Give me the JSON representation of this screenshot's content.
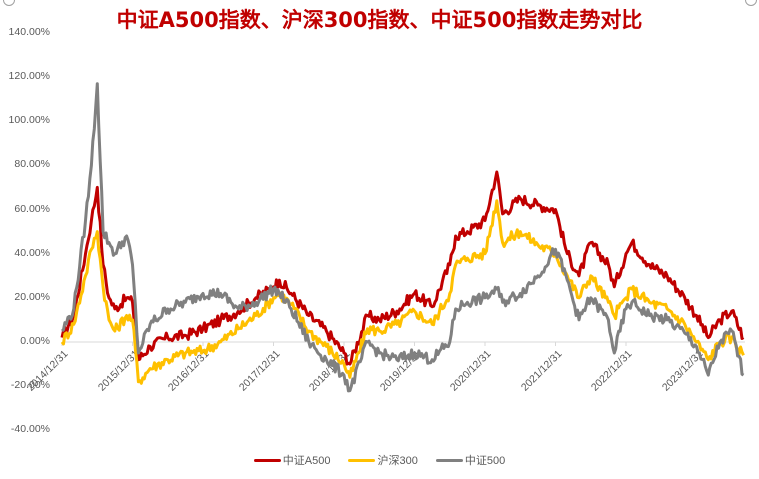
{
  "title": "中证A500指数、沪深300指数、中证500指数走势对比",
  "legend": [
    {
      "label": "中证A500",
      "color": "#c00000"
    },
    {
      "label": "沪深300",
      "color": "#ffc000"
    },
    {
      "label": "中证500",
      "color": "#808080"
    }
  ],
  "y_axis": {
    "ticks": [
      "140.00%",
      "120.00%",
      "100.00%",
      "80.00%",
      "60.00%",
      "40.00%",
      "20.00%",
      "0.00%",
      "-20.00%",
      "-40.00%"
    ]
  },
  "x_axis": {
    "ticks": [
      "2014/12/31",
      "2015/12/31",
      "2016/12/31",
      "2017/12/31",
      "2018/12/31",
      "2019/12/31",
      "2020/12/31",
      "2021/12/31",
      "2022/12/31",
      "2023/12/31"
    ]
  },
  "chart_data": {
    "type": "line",
    "title": "中证A500指数、沪深300指数、中证500指数走势对比",
    "xlabel": "",
    "ylabel": "",
    "ylim": [
      -40,
      140
    ],
    "y_unit": "%",
    "grid": false,
    "legend_position": "bottom",
    "x": [
      "2014-12",
      "2015-02",
      "2015-04",
      "2015-05",
      "2015-06",
      "2015-07",
      "2015-08",
      "2015-09",
      "2015-11",
      "2015-12",
      "2016-01",
      "2016-03",
      "2016-06",
      "2016-09",
      "2016-12",
      "2017-03",
      "2017-06",
      "2017-09",
      "2017-12",
      "2018-01",
      "2018-03",
      "2018-06",
      "2018-09",
      "2018-12",
      "2019-01",
      "2019-04",
      "2019-06",
      "2019-09",
      "2019-12",
      "2020-03",
      "2020-06",
      "2020-07",
      "2020-09",
      "2020-12",
      "2021-02",
      "2021-03",
      "2021-06",
      "2021-09",
      "2021-12",
      "2022-02",
      "2022-04",
      "2022-06",
      "2022-09",
      "2022-10",
      "2022-12",
      "2023-01",
      "2023-04",
      "2023-07",
      "2023-10",
      "2023-12",
      "2024-02",
      "2024-04",
      "2024-06",
      "2024-08"
    ],
    "series": [
      {
        "name": "中证A500",
        "color": "#c00000",
        "values": [
          2,
          12,
          40,
          55,
          70,
          35,
          20,
          15,
          20,
          18,
          -8,
          -2,
          2,
          3,
          6,
          10,
          14,
          20,
          25,
          28,
          22,
          12,
          5,
          -5,
          -10,
          12,
          10,
          14,
          22,
          16,
          35,
          48,
          50,
          55,
          77,
          58,
          65,
          62,
          60,
          40,
          30,
          45,
          35,
          25,
          40,
          45,
          35,
          30,
          20,
          12,
          2,
          10,
          14,
          2
        ]
      },
      {
        "name": "沪深300",
        "color": "#ffc000",
        "values": [
          0,
          8,
          30,
          42,
          50,
          25,
          10,
          5,
          12,
          10,
          -18,
          -12,
          -8,
          -5,
          -4,
          0,
          6,
          12,
          20,
          22,
          17,
          5,
          -2,
          -10,
          -16,
          6,
          5,
          8,
          14,
          8,
          22,
          35,
          38,
          40,
          64,
          45,
          50,
          44,
          40,
          30,
          20,
          30,
          18,
          12,
          20,
          24,
          18,
          15,
          8,
          0,
          -8,
          0,
          2,
          -6
        ]
      },
      {
        "name": "中证500",
        "color": "#808080",
        "values": [
          5,
          15,
          55,
          80,
          117,
          50,
          45,
          40,
          48,
          35,
          -5,
          8,
          15,
          18,
          22,
          22,
          15,
          18,
          24,
          22,
          15,
          0,
          -8,
          -15,
          -22,
          0,
          -5,
          -8,
          -5,
          -8,
          0,
          15,
          18,
          20,
          24,
          18,
          22,
          30,
          42,
          28,
          10,
          20,
          10,
          -5,
          15,
          18,
          12,
          10,
          4,
          -2,
          -15,
          0,
          5,
          -15
        ]
      }
    ]
  }
}
